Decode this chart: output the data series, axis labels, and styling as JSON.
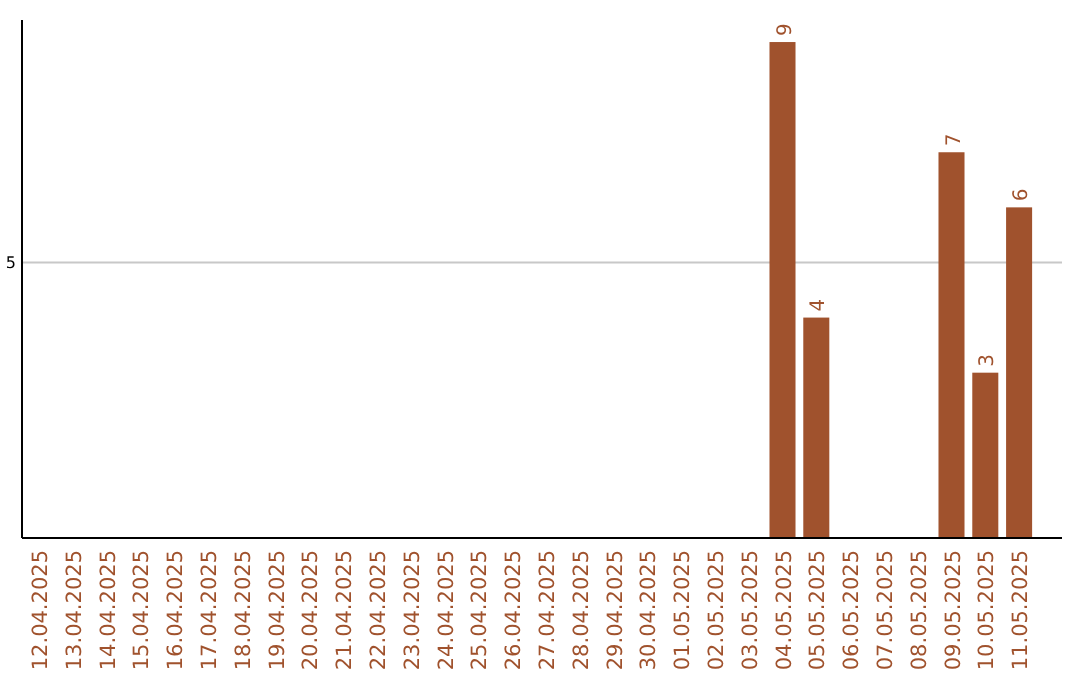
{
  "chart_data": {
    "type": "bar",
    "categories": [
      "12.04.2025",
      "13.04.2025",
      "14.04.2025",
      "15.04.2025",
      "16.04.2025",
      "17.04.2025",
      "18.04.2025",
      "19.04.2025",
      "20.04.2025",
      "21.04.2025",
      "22.04.2025",
      "23.04.2025",
      "24.04.2025",
      "25.04.2025",
      "26.04.2025",
      "27.04.2025",
      "28.04.2025",
      "29.04.2025",
      "30.04.2025",
      "01.05.2025",
      "02.05.2025",
      "03.05.2025",
      "04.05.2025",
      "05.05.2025",
      "06.05.2025",
      "07.05.2025",
      "08.05.2025",
      "09.05.2025",
      "10.05.2025",
      "11.05.2025"
    ],
    "values": [
      null,
      null,
      null,
      null,
      null,
      null,
      null,
      null,
      null,
      null,
      null,
      null,
      null,
      null,
      null,
      null,
      null,
      null,
      null,
      null,
      null,
      null,
      9,
      4,
      null,
      null,
      null,
      7,
      3,
      6
    ],
    "data_labels": true,
    "color": "#a0522d",
    "ylim": [
      0,
      9.4
    ],
    "yticks": [
      5
    ],
    "grid": "y"
  }
}
